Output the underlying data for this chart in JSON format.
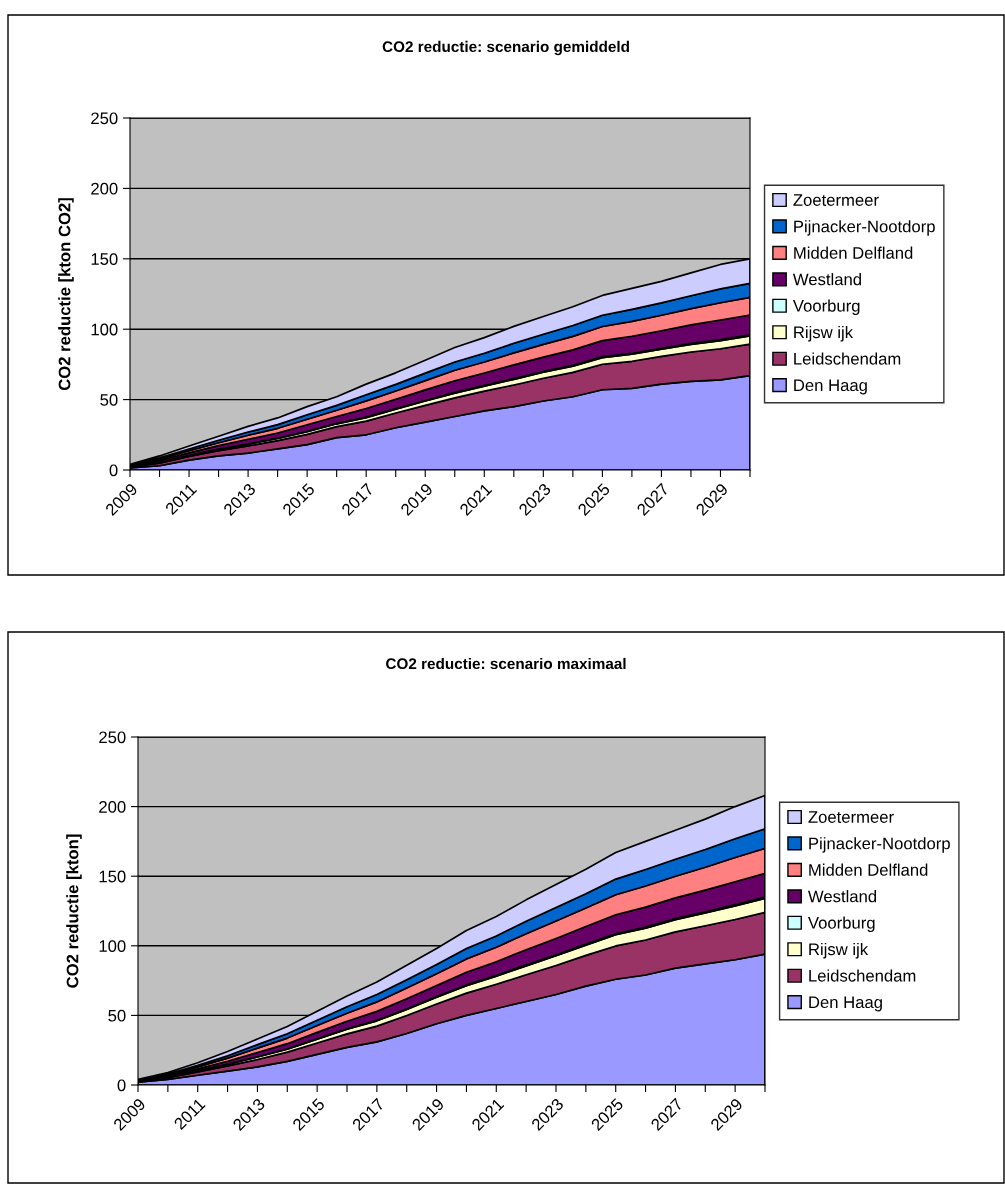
{
  "chart_data": [
    {
      "type": "area",
      "stacked": true,
      "title": "CO2 reductie: scenario gemiddeld",
      "ylabel": "CO2 reductie [kton CO2]",
      "categories": [
        "2009",
        null,
        "2011",
        null,
        "2013",
        null,
        "2015",
        null,
        "2017",
        null,
        "2019",
        null,
        "2021",
        null,
        "2023",
        null,
        "2025",
        null,
        "2027",
        null,
        "2029",
        null
      ],
      "ylim": [
        0,
        250
      ],
      "yticks": [
        0,
        50,
        100,
        150,
        200,
        250
      ],
      "grid": "y",
      "legend": "right",
      "series": [
        {
          "name": "Den Haag",
          "color": "#9999ff",
          "values": [
            1.5,
            3,
            7,
            10,
            12,
            15,
            18,
            23,
            25,
            30,
            34,
            38,
            42,
            45,
            49,
            52,
            57,
            58,
            61,
            63,
            64,
            67
          ]
        },
        {
          "name": "Leidschendam",
          "color": "#993366",
          "values": [
            0.7,
            1.9,
            2.7,
            3.8,
            5.1,
            5.9,
            7.3,
            7.8,
            9.7,
            10.5,
            11.9,
            13.2,
            14,
            15.4,
            16.2,
            17.3,
            18.1,
            19.2,
            19.7,
            20.8,
            22.1,
            22.4
          ]
        },
        {
          "name": "Rijsw ijk",
          "color": "#ffffcc",
          "values": [
            0.2,
            0.5,
            0.7,
            1,
            1.3,
            1.5,
            1.9,
            2,
            2.5,
            2.7,
            3.1,
            3.4,
            3.6,
            4,
            4.2,
            4.5,
            4.7,
            5,
            5.1,
            5.4,
            5.7,
            5.8
          ]
        },
        {
          "name": "Voorburg",
          "color": "#ccffff",
          "values": [
            0,
            0.1,
            0.1,
            0.1,
            0.2,
            0.2,
            0.3,
            0.3,
            0.4,
            0.4,
            0.4,
            0.5,
            0.5,
            0.6,
            0.6,
            0.6,
            0.7,
            0.7,
            0.7,
            0.8,
            0.8,
            0.8
          ]
        },
        {
          "name": "Westland",
          "color": "#660066",
          "values": [
            0.4,
            1.2,
            1.7,
            2.4,
            3.2,
            3.7,
            4.6,
            4.9,
            6.1,
            6.6,
            7.5,
            8.3,
            8.8,
            9.7,
            10.2,
            10.9,
            11.4,
            12.1,
            12.4,
            13.1,
            13.9,
            14.1
          ]
        },
        {
          "name": "Midden Delfland",
          "color": "#ff8080",
          "values": [
            0.4,
            1.1,
            1.5,
            2.1,
            2.9,
            3.3,
            4,
            4.4,
            5.4,
            5.9,
            6.6,
            7.4,
            7.8,
            8.5,
            9,
            9.6,
            10,
            10.6,
            11,
            11.5,
            12.3,
            12.5
          ]
        },
        {
          "name": "Pijnacker-Nootdorp",
          "color": "#0066cc",
          "values": [
            0.3,
            0.8,
            1.2,
            1.7,
            2.3,
            2.6,
            3.2,
            3.5,
            4.3,
            4.7,
            5.3,
            5.9,
            6.2,
            6.8,
            7.2,
            7.7,
            8,
            8.5,
            8.8,
            9.2,
            9.8,
            10
          ]
        },
        {
          "name": "Zoetermeer",
          "color": "#ccccff",
          "values": [
            0.5,
            1.4,
            2.1,
            2.9,
            4,
            4.8,
            5.7,
            6.1,
            7.6,
            8.2,
            9.2,
            10.3,
            11.1,
            12,
            12.6,
            13.4,
            14.1,
            14.9,
            15.3,
            16.2,
            17.4,
            17.4
          ]
        }
      ]
    },
    {
      "type": "area",
      "stacked": true,
      "title": "CO2 reductie: scenario maximaal",
      "ylabel": "CO2 reductie [kton]",
      "categories": [
        "2009",
        null,
        "2011",
        null,
        "2013",
        null,
        "2015",
        null,
        "2017",
        null,
        "2019",
        null,
        "2021",
        null,
        "2023",
        null,
        "2025",
        null,
        "2027",
        null,
        "2029",
        null
      ],
      "ylim": [
        0,
        250
      ],
      "yticks": [
        0,
        50,
        100,
        150,
        200,
        250
      ],
      "grid": "y",
      "legend": "right",
      "series": [
        {
          "name": "Den Haag",
          "color": "#9999ff",
          "values": [
            2,
            4,
            7,
            10,
            13,
            17,
            22,
            27,
            31,
            37,
            44,
            50,
            55,
            60,
            65,
            71,
            76,
            79,
            84,
            87,
            90,
            94
          ]
        },
        {
          "name": "Leidschendam",
          "color": "#993366",
          "values": [
            0.5,
            1.3,
            2.4,
            3.7,
            5.3,
            6.6,
            8.2,
            9.7,
            11.3,
            12.9,
            14.2,
            16,
            17.4,
            19.2,
            20.8,
            22.1,
            23.9,
            25.2,
            26,
            27.4,
            28.9,
            30
          ]
        },
        {
          "name": "Rijsw ijk",
          "color": "#ffffcc",
          "values": [
            0.2,
            0.4,
            0.8,
            1.2,
            1.8,
            2.2,
            2.7,
            3.3,
            3.8,
            4.3,
            4.8,
            5.4,
            5.8,
            6.4,
            7,
            7.4,
            8,
            8.4,
            8.7,
            9.2,
            9.7,
            10
          ]
        },
        {
          "name": "Voorburg",
          "color": "#ccffff",
          "values": [
            0,
            0.1,
            0.1,
            0.1,
            0.2,
            0.2,
            0.3,
            0.3,
            0.4,
            0.4,
            0.5,
            0.5,
            0.6,
            0.7,
            0.7,
            0.8,
            0.8,
            0.9,
            0.9,
            0.9,
            1,
            1
          ]
        },
        {
          "name": "Westland",
          "color": "#660066",
          "values": [
            0.3,
            0.7,
            1.3,
            2.1,
            3,
            3.7,
            4.6,
            5.5,
            6.4,
            7.3,
            8,
            9.1,
            9.8,
            10.9,
            11.8,
            12.5,
            13.6,
            14.3,
            14.8,
            15.5,
            16.4,
            17
          ]
        },
        {
          "name": "Midden Delfland",
          "color": "#ff8080",
          "values": [
            0.3,
            0.8,
            1.4,
            2.2,
            3.2,
            4,
            4.9,
            5.8,
            6.8,
            7.7,
            8.5,
            9.6,
            10.4,
            11.5,
            12.5,
            13.3,
            14.4,
            15.2,
            15.6,
            16.4,
            17.4,
            18
          ]
        },
        {
          "name": "Pijnacker-Nootdorp",
          "color": "#0066cc",
          "values": [
            0.3,
            0.6,
            1.1,
            1.7,
            2.5,
            3.1,
            3.8,
            4.6,
            5.3,
            6,
            6.6,
            7.5,
            8.1,
            9,
            9.7,
            10.3,
            11.2,
            11.8,
            12.2,
            12.8,
            13.5,
            14
          ]
        },
        {
          "name": "Zoetermeer",
          "color": "#ccccff",
          "values": [
            0.4,
            1.1,
            1.9,
            3,
            4,
            5.2,
            6.5,
            7.8,
            9,
            10.4,
            11.4,
            12.9,
            13.9,
            15.3,
            16.5,
            17.6,
            19.1,
            20.2,
            20.8,
            21.8,
            23.1,
            24
          ]
        }
      ]
    }
  ]
}
